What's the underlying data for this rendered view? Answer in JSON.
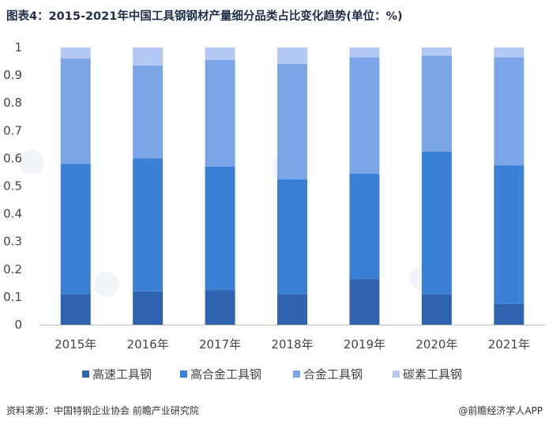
{
  "title": "图表4：2015-2021年中国工具钢钢材产量细分品类占比变化趋势(单位：%)",
  "footer": {
    "source": "资料来源：中国特钢企业协会 前瞻产业研究院",
    "brand": "@前瞻经济学人APP"
  },
  "chart_data": {
    "type": "bar",
    "stacked": true,
    "categories": [
      "2015年",
      "2016年",
      "2017年",
      "2018年",
      "2019年",
      "2020年",
      "2021年"
    ],
    "series": [
      {
        "name": "高速工具钢",
        "color": "#2f63b0",
        "values": [
          0.11,
          0.12,
          0.125,
          0.11,
          0.165,
          0.11,
          0.075
        ]
      },
      {
        "name": "高合金工具钢",
        "color": "#3a80d6",
        "values": [
          0.47,
          0.48,
          0.445,
          0.415,
          0.38,
          0.515,
          0.5
        ]
      },
      {
        "name": "合金工具钢",
        "color": "#7aa6e8",
        "values": [
          0.38,
          0.335,
          0.385,
          0.415,
          0.42,
          0.345,
          0.39
        ]
      },
      {
        "name": "碳素工具钢",
        "color": "#b3c8f2",
        "values": [
          0.04,
          0.065,
          0.045,
          0.06,
          0.035,
          0.03,
          0.035
        ]
      }
    ],
    "yticks": [
      "0",
      "0.1",
      "0.2",
      "0.3",
      "0.4",
      "0.5",
      "0.6",
      "0.7",
      "0.8",
      "0.9",
      "1"
    ],
    "ylim": [
      0,
      1
    ],
    "grid": false,
    "legend": "bottom",
    "xlabel": "",
    "ylabel": ""
  }
}
